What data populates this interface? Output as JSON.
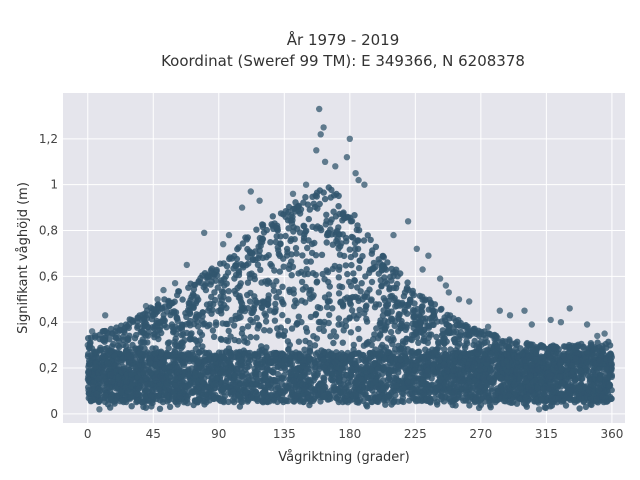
{
  "chart_data": {
    "type": "scatter",
    "title": [
      "År 1979 - 2019",
      "Koordinat (Sweref 99 TM): E 349366, N 6208378"
    ],
    "xlabel": "Vågriktning (grader)",
    "ylabel": "Signifikant våghöjd (m)",
    "xlim": [
      -17,
      369
    ],
    "ylim": [
      -0.04,
      1.4
    ],
    "x_ticks": [
      0,
      45,
      90,
      135,
      180,
      225,
      270,
      315,
      360
    ],
    "x_tick_labels": [
      "0",
      "45",
      "90",
      "135",
      "180",
      "225",
      "270",
      "315",
      "360"
    ],
    "y_ticks": [
      0,
      0.2,
      0.4,
      0.6,
      0.8,
      1.0,
      1.2
    ],
    "y_tick_labels": [
      "0",
      "0,2",
      "0,4",
      "0,6",
      "0,8",
      "1",
      "1,2"
    ],
    "grid": true,
    "legend": "none",
    "colors": {
      "marker": "#31566e",
      "plot_background": "#e5e5ec",
      "grid": "#ffffff"
    },
    "envelope": {
      "x": [
        0,
        10,
        20,
        30,
        45,
        60,
        75,
        90,
        100,
        110,
        120,
        130,
        140,
        150,
        160,
        165,
        170,
        180,
        190,
        200,
        210,
        225,
        240,
        255,
        270,
        285,
        300,
        315,
        330,
        345,
        360
      ],
      "y_max": [
        0.33,
        0.36,
        0.38,
        0.42,
        0.47,
        0.53,
        0.59,
        0.66,
        0.72,
        0.78,
        0.84,
        0.88,
        0.92,
        0.95,
        0.98,
        0.99,
        0.97,
        0.9,
        0.8,
        0.72,
        0.64,
        0.55,
        0.47,
        0.41,
        0.37,
        0.33,
        0.31,
        0.3,
        0.3,
        0.31,
        0.32
      ],
      "y_min": [
        0.02,
        0.02,
        0.02,
        0.02,
        0.02,
        0.02,
        0.02,
        0.02,
        0.02,
        0.02,
        0.02,
        0.02,
        0.02,
        0.02,
        0.02,
        0.02,
        0.02,
        0.02,
        0.02,
        0.02,
        0.02,
        0.02,
        0.02,
        0.02,
        0.02,
        0.02,
        0.02,
        0.02,
        0.02,
        0.02,
        0.02
      ]
    },
    "outliers": [
      {
        "x": 159,
        "y": 1.33
      },
      {
        "x": 162,
        "y": 1.25
      },
      {
        "x": 160,
        "y": 1.22
      },
      {
        "x": 180,
        "y": 1.2
      },
      {
        "x": 157,
        "y": 1.15
      },
      {
        "x": 178,
        "y": 1.12
      },
      {
        "x": 163,
        "y": 1.1
      },
      {
        "x": 170,
        "y": 1.08
      },
      {
        "x": 184,
        "y": 1.05
      },
      {
        "x": 186,
        "y": 1.02
      },
      {
        "x": 150,
        "y": 1.0
      },
      {
        "x": 190,
        "y": 1.0
      },
      {
        "x": 112,
        "y": 0.97
      },
      {
        "x": 141,
        "y": 0.96
      },
      {
        "x": 118,
        "y": 0.93
      },
      {
        "x": 106,
        "y": 0.9
      },
      {
        "x": 220,
        "y": 0.84
      },
      {
        "x": 80,
        "y": 0.79
      },
      {
        "x": 210,
        "y": 0.78
      },
      {
        "x": 97,
        "y": 0.78
      },
      {
        "x": 93,
        "y": 0.74
      },
      {
        "x": 226,
        "y": 0.72
      },
      {
        "x": 234,
        "y": 0.69
      },
      {
        "x": 68,
        "y": 0.65
      },
      {
        "x": 230,
        "y": 0.63
      },
      {
        "x": 242,
        "y": 0.59
      },
      {
        "x": 60,
        "y": 0.57
      },
      {
        "x": 246,
        "y": 0.56
      },
      {
        "x": 52,
        "y": 0.54
      },
      {
        "x": 248,
        "y": 0.53
      },
      {
        "x": 255,
        "y": 0.5
      },
      {
        "x": 262,
        "y": 0.49
      },
      {
        "x": 48,
        "y": 0.5
      },
      {
        "x": 40,
        "y": 0.47
      },
      {
        "x": 283,
        "y": 0.45
      },
      {
        "x": 300,
        "y": 0.45
      },
      {
        "x": 331,
        "y": 0.46
      },
      {
        "x": 12,
        "y": 0.43
      },
      {
        "x": 318,
        "y": 0.41
      },
      {
        "x": 325,
        "y": 0.4
      },
      {
        "x": 305,
        "y": 0.39
      },
      {
        "x": 30,
        "y": 0.41
      },
      {
        "x": 343,
        "y": 0.39
      },
      {
        "x": 355,
        "y": 0.35
      },
      {
        "x": 0,
        "y": 0.3
      },
      {
        "x": 3,
        "y": 0.36
      },
      {
        "x": 350,
        "y": 0.34
      },
      {
        "x": 8,
        "y": 0.02
      },
      {
        "x": 275,
        "y": 0.38
      },
      {
        "x": 290,
        "y": 0.43
      },
      {
        "x": 310,
        "y": 0.02
      }
    ]
  }
}
